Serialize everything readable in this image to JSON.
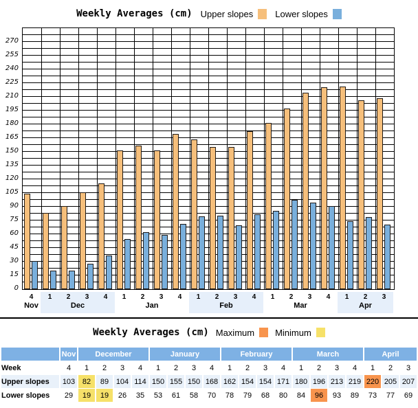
{
  "chart": {
    "title": "Weekly Averages (cm)"
  },
  "chart_data": {
    "type": "bar",
    "title": "Weekly Averages (cm)",
    "xlabel": "",
    "ylabel": "",
    "unit": "cm",
    "ylim": [
      0,
      285
    ],
    "ytick_step": 15,
    "grid_step": 7.5,
    "ytick_labels": [
      0,
      15,
      30,
      45,
      60,
      75,
      90,
      105,
      120,
      135,
      150,
      165,
      180,
      195,
      210,
      225,
      240,
      255,
      270
    ],
    "grid": "on",
    "legend_position": "top",
    "months": [
      {
        "name": "Nov",
        "weeks": [
          4
        ],
        "shaded": false
      },
      {
        "name": "Dec",
        "weeks": [
          1,
          2,
          3,
          4
        ],
        "shaded": true
      },
      {
        "name": "Jan",
        "weeks": [
          1,
          2,
          3,
          4
        ],
        "shaded": false
      },
      {
        "name": "Feb",
        "weeks": [
          1,
          2,
          3,
          4
        ],
        "shaded": true
      },
      {
        "name": "Mar",
        "weeks": [
          1,
          2,
          3,
          4
        ],
        "shaded": false
      },
      {
        "name": "Apr",
        "weeks": [
          1,
          2,
          3
        ],
        "shaded": true
      }
    ],
    "categories": [
      "Nov 4",
      "Dec 1",
      "Dec 2",
      "Dec 3",
      "Dec 4",
      "Jan 1",
      "Jan 2",
      "Jan 3",
      "Jan 4",
      "Feb 1",
      "Feb 2",
      "Feb 3",
      "Feb 4",
      "Mar 1",
      "Mar 2",
      "Mar 3",
      "Mar 4",
      "Apr 1",
      "Apr 2",
      "Apr 3"
    ],
    "series": [
      {
        "name": "Upper slopes",
        "color": "#F6BF7B",
        "values": [
          103,
          82,
          89,
          104,
          114,
          150,
          155,
          150,
          168,
          162,
          154,
          154,
          171,
          180,
          196,
          213,
          219,
          220,
          205,
          207
        ]
      },
      {
        "name": "Lower slopes",
        "color": "#79AFDC",
        "values": [
          29,
          19,
          19,
          26,
          35,
          53,
          61,
          58,
          70,
          78,
          79,
          68,
          80,
          84,
          96,
          93,
          89,
          73,
          77,
          69
        ]
      }
    ]
  },
  "table": {
    "title": "Weekly Averages (cm)",
    "legend": [
      {
        "label": "Maximum",
        "color": "#F8944D"
      },
      {
        "label": "Minimum",
        "color": "#F6E169"
      }
    ],
    "months": [
      {
        "name": "Nov",
        "span": 1
      },
      {
        "name": "December",
        "span": 4
      },
      {
        "name": "January",
        "span": 4
      },
      {
        "name": "February",
        "span": 4
      },
      {
        "name": "March",
        "span": 4
      },
      {
        "name": "April",
        "span": 3
      }
    ],
    "rows": [
      {
        "label": "Week",
        "shaded": false,
        "values": [
          4,
          1,
          2,
          3,
          4,
          1,
          2,
          3,
          4,
          1,
          2,
          3,
          4,
          1,
          2,
          3,
          4,
          1,
          2,
          3
        ],
        "highlights": []
      },
      {
        "label": "Upper slopes",
        "shaded": true,
        "values": [
          103,
          82,
          89,
          104,
          114,
          150,
          155,
          150,
          168,
          162,
          154,
          154,
          171,
          180,
          196,
          213,
          219,
          220,
          205,
          207
        ],
        "highlights": [
          {
            "index": 1,
            "type": "min"
          },
          {
            "index": 17,
            "type": "max"
          }
        ]
      },
      {
        "label": "Lower slopes",
        "shaded": false,
        "values": [
          29,
          19,
          19,
          26,
          35,
          53,
          61,
          58,
          70,
          78,
          79,
          68,
          80,
          84,
          96,
          93,
          89,
          73,
          77,
          69
        ],
        "highlights": [
          {
            "index": 1,
            "type": "min"
          },
          {
            "index": 2,
            "type": "min"
          },
          {
            "index": 14,
            "type": "max"
          }
        ]
      }
    ]
  },
  "colors": {
    "bar_upper": "#F6BF7B",
    "bar_lower": "#79AFDC",
    "bar_border": "#1F1A17",
    "grid": "#000000",
    "header_blue": "#7EB1E4",
    "header_text": "#FFFFFF",
    "row_shade": "#E9F1FA",
    "strip_shade": "#E6EFFA",
    "highlight_max": "#F8944D",
    "highlight_min": "#F6E169",
    "separator": "#000000"
  }
}
